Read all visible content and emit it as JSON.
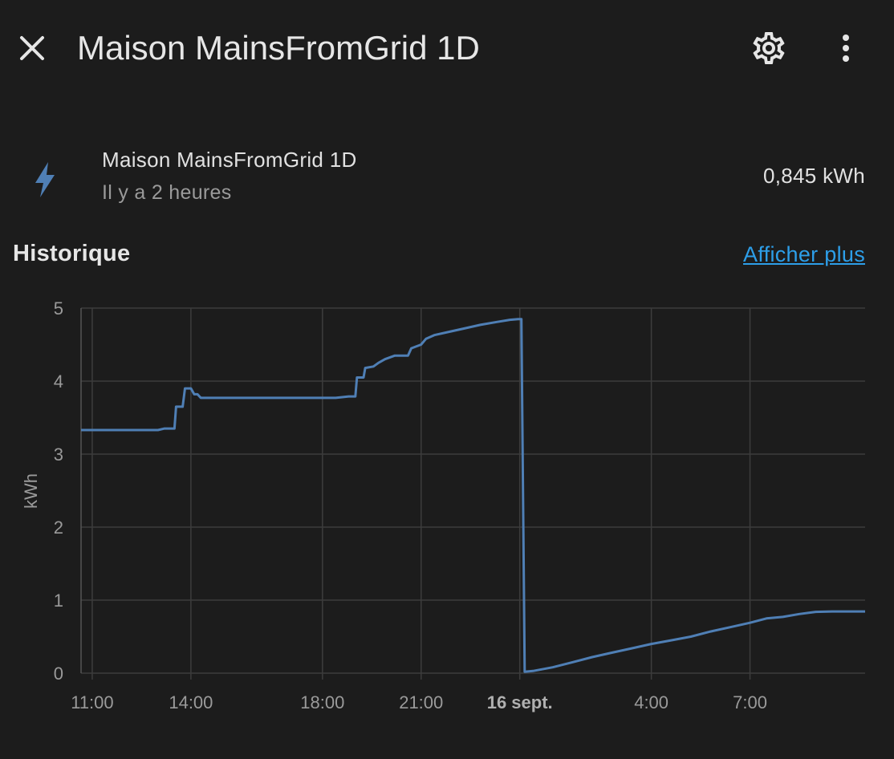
{
  "header": {
    "title": "Maison MainsFromGrid 1D",
    "close_icon": "close-icon",
    "settings_icon": "gear-icon",
    "more_icon": "more-vertical-icon"
  },
  "entity": {
    "icon": "lightning-bolt-icon",
    "name": "Maison MainsFromGrid 1D",
    "last_changed": "Il y a 2 heures",
    "state": "0,845 kWh"
  },
  "history": {
    "title": "Historique",
    "more_link": "Afficher plus"
  },
  "colors": {
    "background": "#1c1c1c",
    "line": "#4f7fb5",
    "link": "#2d9ee8",
    "icon": "#4f7fb5"
  },
  "chart_data": {
    "type": "line",
    "ylabel": "kWh",
    "ylim": [
      0,
      5
    ],
    "yticks": [
      "0",
      "1",
      "2",
      "3",
      "4",
      "5"
    ],
    "xticks": [
      {
        "label": "11:00",
        "hour": 11,
        "bold": false
      },
      {
        "label": "14:00",
        "hour": 14,
        "bold": false
      },
      {
        "label": "18:00",
        "hour": 18,
        "bold": false
      },
      {
        "label": "21:00",
        "hour": 21,
        "bold": false
      },
      {
        "label": "16 sept.",
        "hour": 24,
        "bold": true
      },
      {
        "label": "4:00",
        "hour": 28,
        "bold": false
      },
      {
        "label": "7:00",
        "hour": 31,
        "bold": false
      }
    ],
    "xlim": [
      10.66,
      34.5
    ],
    "grid": true,
    "series": [
      {
        "points": [
          [
            10.66,
            3.33
          ],
          [
            13.0,
            3.33
          ],
          [
            13.2,
            3.35
          ],
          [
            13.5,
            3.35
          ],
          [
            13.55,
            3.65
          ],
          [
            13.75,
            3.65
          ],
          [
            13.82,
            3.9
          ],
          [
            14.0,
            3.9
          ],
          [
            14.1,
            3.82
          ],
          [
            14.2,
            3.82
          ],
          [
            14.3,
            3.77
          ],
          [
            18.4,
            3.77
          ],
          [
            18.6,
            3.78
          ],
          [
            18.8,
            3.79
          ],
          [
            19.0,
            3.79
          ],
          [
            19.05,
            4.05
          ],
          [
            19.25,
            4.05
          ],
          [
            19.3,
            4.18
          ],
          [
            19.55,
            4.2
          ],
          [
            19.7,
            4.25
          ],
          [
            19.9,
            4.3
          ],
          [
            20.2,
            4.35
          ],
          [
            20.6,
            4.35
          ],
          [
            20.7,
            4.45
          ],
          [
            21.0,
            4.5
          ],
          [
            21.15,
            4.58
          ],
          [
            21.4,
            4.63
          ],
          [
            21.9,
            4.68
          ],
          [
            22.3,
            4.72
          ],
          [
            22.8,
            4.77
          ],
          [
            23.3,
            4.81
          ],
          [
            23.7,
            4.84
          ],
          [
            23.95,
            4.85
          ],
          [
            24.05,
            4.85
          ],
          [
            24.15,
            0.02
          ],
          [
            24.4,
            0.03
          ],
          [
            25.0,
            0.08
          ],
          [
            25.6,
            0.15
          ],
          [
            26.2,
            0.22
          ],
          [
            26.8,
            0.28
          ],
          [
            27.4,
            0.34
          ],
          [
            28.0,
            0.4
          ],
          [
            28.6,
            0.45
          ],
          [
            29.2,
            0.5
          ],
          [
            29.8,
            0.57
          ],
          [
            30.4,
            0.63
          ],
          [
            31.0,
            0.69
          ],
          [
            31.5,
            0.75
          ],
          [
            32.0,
            0.77
          ],
          [
            32.5,
            0.81
          ],
          [
            33.0,
            0.84
          ],
          [
            33.5,
            0.845
          ],
          [
            34.5,
            0.845
          ]
        ]
      }
    ]
  }
}
